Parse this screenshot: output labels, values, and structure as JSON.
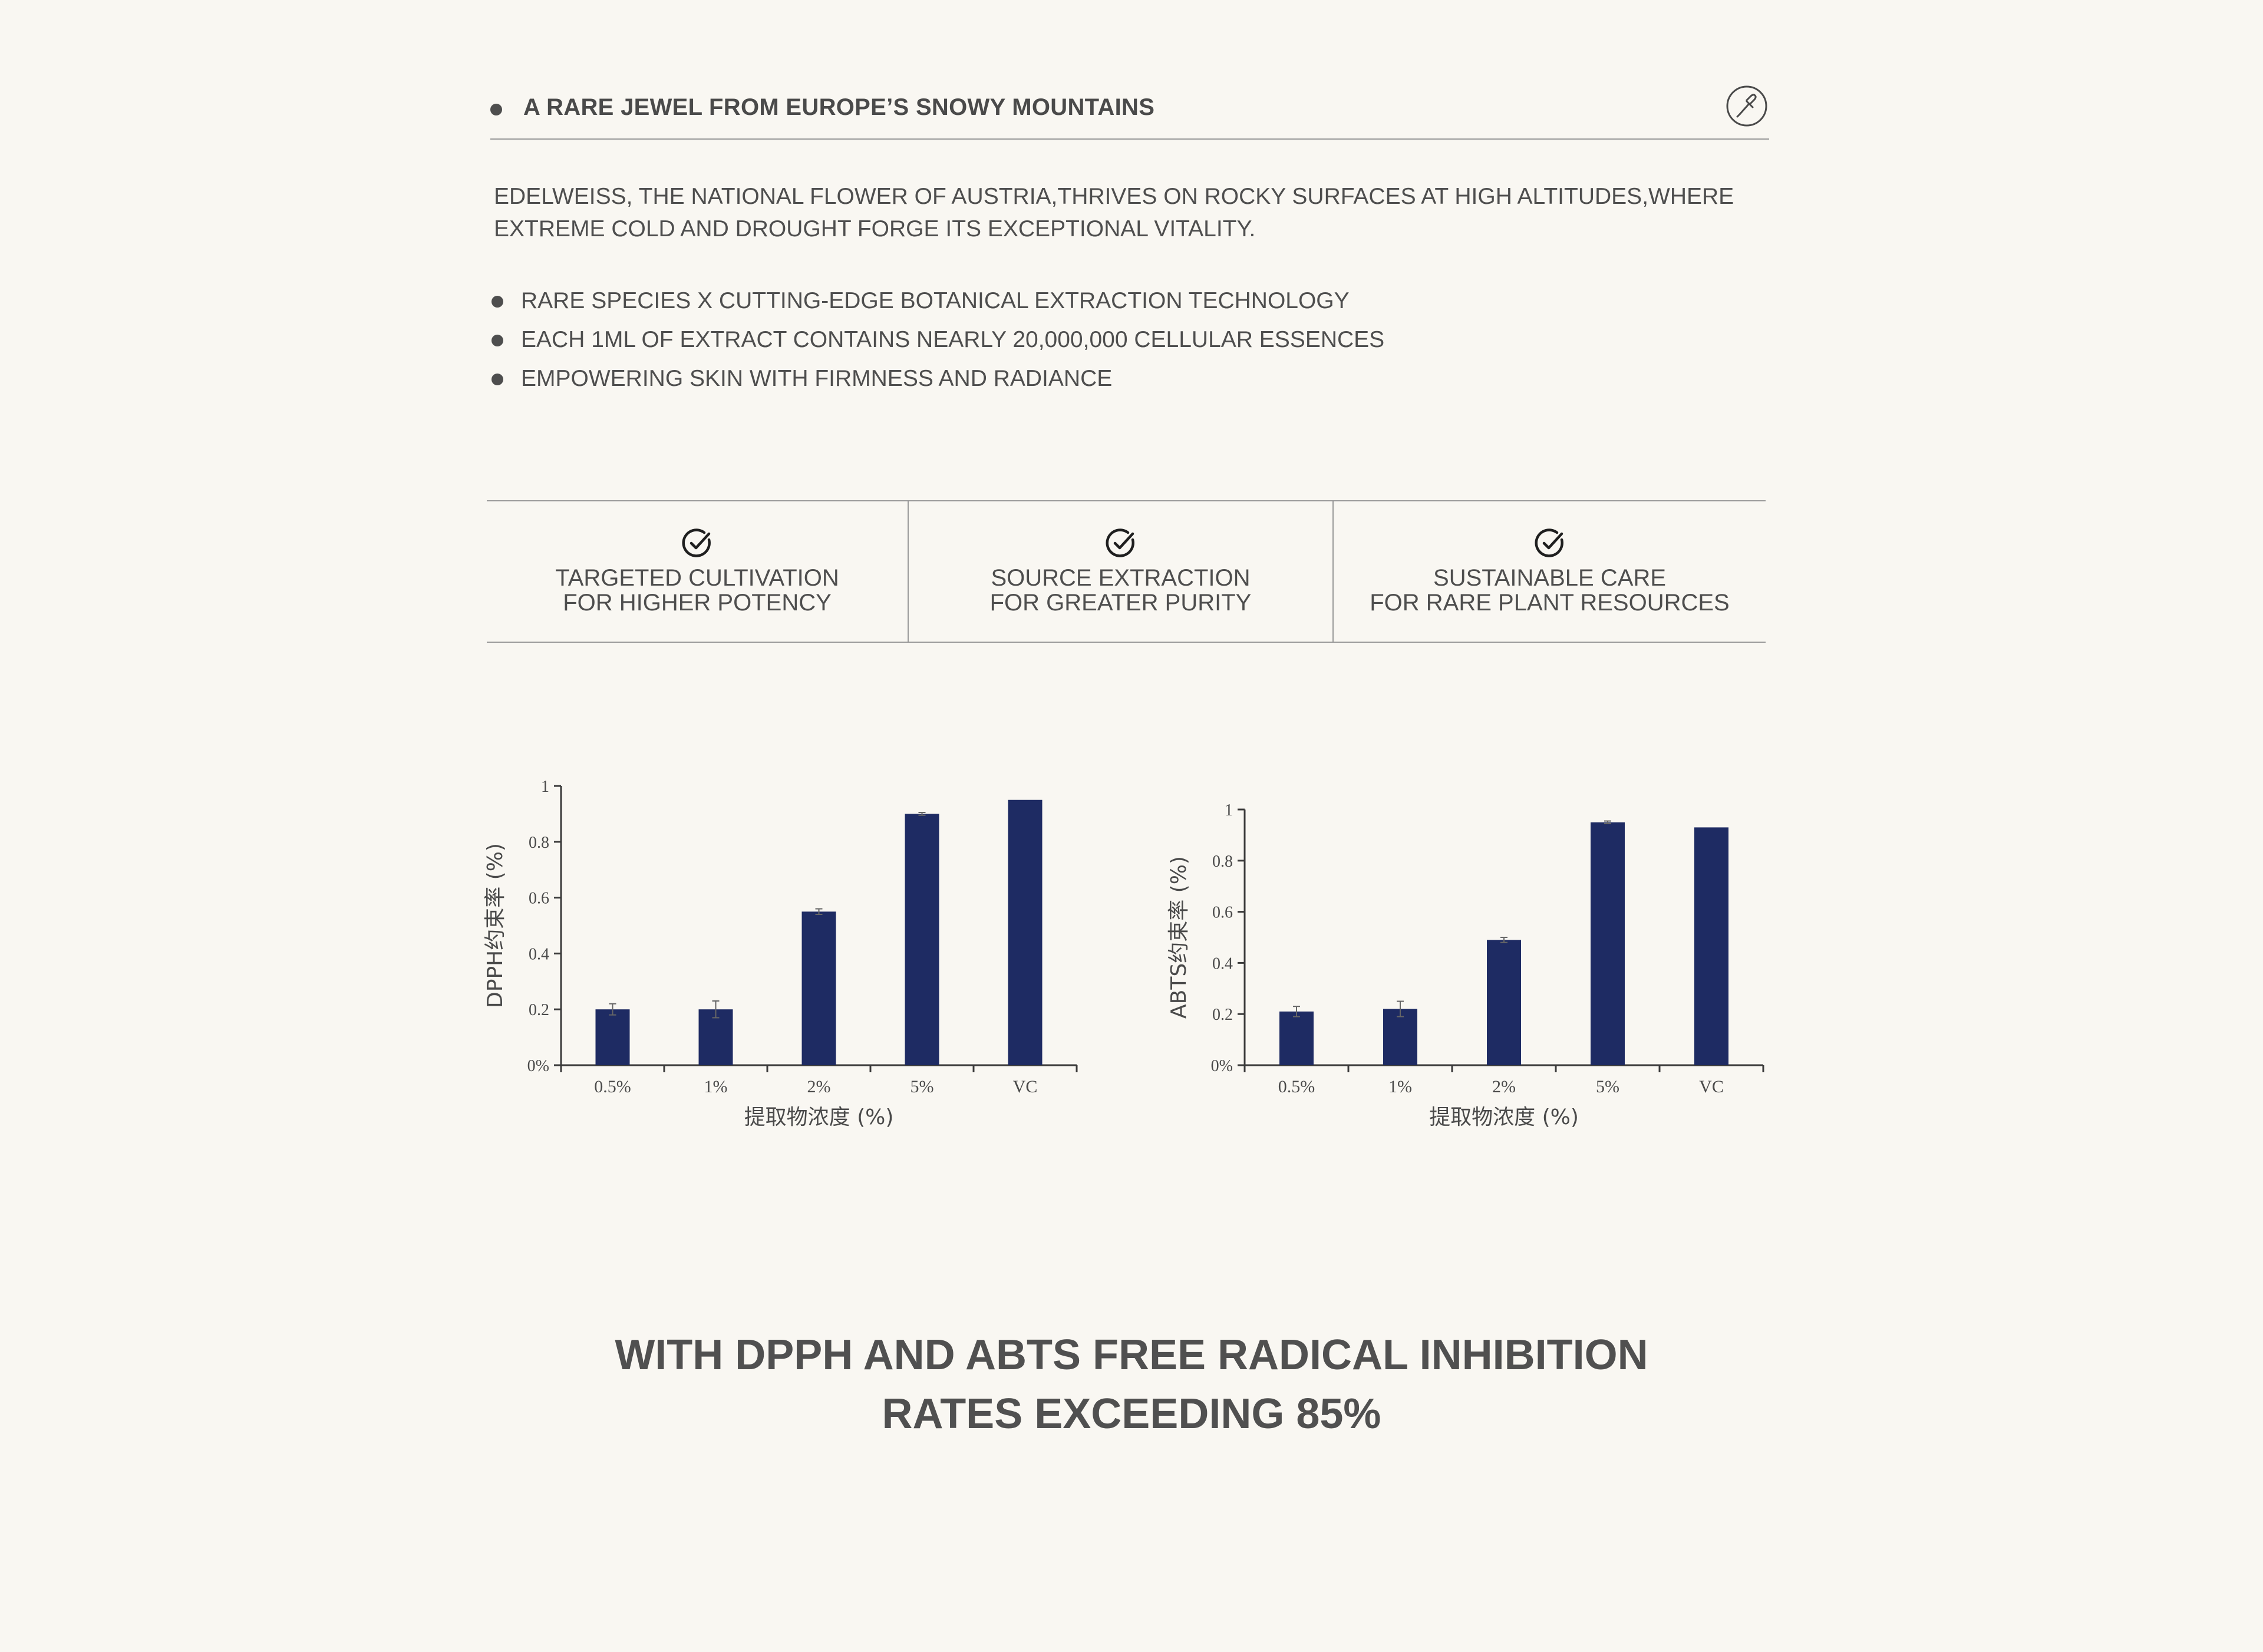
{
  "header": {
    "title": "A RARE JEWEL FROM EUROPE’S SNOWY MOUNTAINS",
    "icon": "dropper-icon"
  },
  "intro": {
    "line1": "EDELWEISS, THE NATIONAL FLOWER OF AUSTRIA,THRIVES ON ROCKY SURFACES AT HIGH ALTITUDES,WHERE",
    "line2": "EXTREME COLD AND DROUGHT FORGE ITS EXCEPTIONAL VITALITY."
  },
  "bullets": [
    "RARE SPECIES X CUTTING-EDGE BOTANICAL EXTRACTION TECHNOLOGY",
    "EACH 1ML OF EXTRACT CONTAINS NEARLY 20,000,000 CELLULAR ESSENCES",
    "EMPOWERING SKIN WITH FIRMNESS AND RADIANCE"
  ],
  "features": [
    {
      "line1": "TARGETED CULTIVATION",
      "line2": "FOR HIGHER POTENCY",
      "icon": "check-circle-icon"
    },
    {
      "line1": "SOURCE EXTRACTION",
      "line2": "FOR GREATER PURITY",
      "icon": "check-circle-icon"
    },
    {
      "line1": "SUSTAINABLE CARE",
      "line2": "FOR RARE PLANT RESOURCES",
      "icon": "check-circle-icon"
    }
  ],
  "colors": {
    "bar": "#1e2b63",
    "text": "#4e4e4e",
    "background": "#f9f7f2"
  },
  "chart_data": [
    {
      "type": "bar",
      "categories": [
        "0.5%",
        "1%",
        "2%",
        "5%",
        "VC"
      ],
      "values": [
        0.2,
        0.2,
        0.55,
        0.9,
        0.95
      ],
      "errors": [
        0.02,
        0.03,
        0.01,
        0.005,
        0.0
      ],
      "xlabel": "提取物浓度 (%)",
      "ylabel": "DPPH约束率 (%)",
      "ylim": [
        0,
        1
      ],
      "yticks": [
        0,
        0.2,
        0.4,
        0.6,
        0.8,
        1
      ],
      "ytick_labels": [
        "0%",
        "0.2",
        "0.4",
        "0.6",
        "0.8",
        "1"
      ],
      "grid": false
    },
    {
      "type": "bar",
      "categories": [
        "0.5%",
        "1%",
        "2%",
        "5%",
        "VC"
      ],
      "values": [
        0.21,
        0.22,
        0.49,
        0.95,
        0.93
      ],
      "errors": [
        0.02,
        0.03,
        0.01,
        0.005,
        0.0
      ],
      "xlabel": "提取物浓度 (%)",
      "ylabel": "ABTS约束率 (%)",
      "ylim": [
        0,
        1
      ],
      "yticks": [
        0,
        0.2,
        0.4,
        0.6,
        0.8,
        1
      ],
      "ytick_labels": [
        "0%",
        "0.2",
        "0.4",
        "0.6",
        "0.8",
        "1"
      ],
      "grid": false
    }
  ],
  "bottom": {
    "line1": "WITH DPPH AND ABTS FREE RADICAL INHIBITION",
    "line2": "RATES EXCEEDING 85%"
  }
}
